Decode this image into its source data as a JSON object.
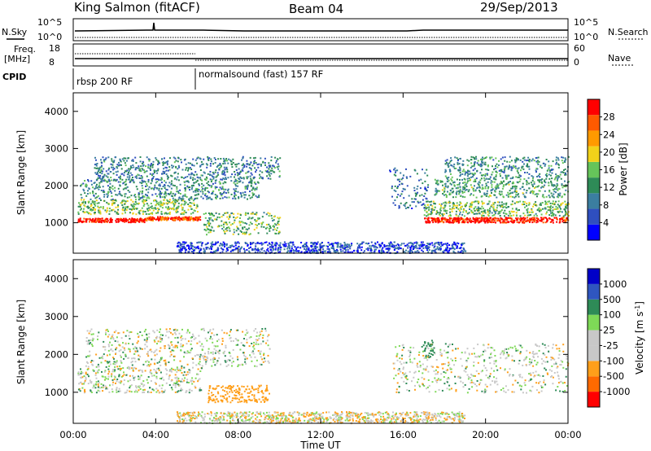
{
  "header": {
    "station": "King Salmon (fitACF)",
    "beam": "Beam 04",
    "date": "29/Sep/2013"
  },
  "strips": {
    "nsky_label": "N.Sky",
    "nsearch_label": "N.Search",
    "freq_label_1": "Freq.",
    "freq_label_2": "[MHz]",
    "nave_label": "Nave",
    "cpid_label": "CPID",
    "noise_ticks": [
      "10^5",
      "10^0"
    ],
    "freq_ticks": [
      "18",
      "8"
    ],
    "nave_ticks": [
      "60",
      "0"
    ],
    "cpid_segments": [
      {
        "label": "rbsp 200 RF",
        "start_hour": 0
      },
      {
        "label": "normalsound (fast) 157 RF",
        "start_hour": 6
      }
    ]
  },
  "colors": {
    "power_scale": [
      "#0000ff",
      "#2f4fbf",
      "#3b7ea0",
      "#2e8b57",
      "#66c45a",
      "#f2d21a",
      "#ff9a00",
      "#ff5a00",
      "#ff0000"
    ],
    "velocity_scale": [
      "#ff0000",
      "#ff6a00",
      "#ff9f1a",
      "#c8c8c8",
      "#c8c8c8",
      "#7ed957",
      "#2e8b57",
      "#2f56bf",
      "#0000c8"
    ],
    "ground_scatter": "#c8c8c8"
  },
  "chart_data": [
    {
      "type": "heatmap",
      "name": "power",
      "ylabel": "Slant Range [km]",
      "ylim": [
        180,
        4500
      ],
      "y_ticks": [
        1000,
        2000,
        3000,
        4000
      ],
      "x_ticks": [
        "00:00",
        "04:00",
        "08:00",
        "12:00",
        "16:00",
        "20:00",
        "00:00"
      ],
      "xlim_hours": [
        0,
        24
      ],
      "colorbar_label": "Power [dB]",
      "colorbar_ticks": [
        "4",
        "8",
        "12",
        "16",
        "20",
        "24",
        "28"
      ],
      "colorbar_range": [
        0,
        30
      ],
      "features": [
        {
          "t": [
            0.2,
            3.5
          ],
          "r0": 1030,
          "r1": 1140,
          "level": 29
        },
        {
          "t": [
            3.5,
            6.2
          ],
          "r0": 1080,
          "r1": 1180,
          "level": 26
        },
        {
          "t": [
            0.2,
            6.0
          ],
          "r0": 1250,
          "r1": 1650,
          "level": 15
        },
        {
          "t": [
            0.3,
            9.0
          ],
          "r0": 1650,
          "r1": 2200,
          "level": 10
        },
        {
          "t": [
            1.0,
            10.0
          ],
          "r0": 2200,
          "r1": 2800,
          "level": 9
        },
        {
          "t": [
            6.3,
            10.0
          ],
          "r0": 700,
          "r1": 1300,
          "level": 14
        },
        {
          "t": [
            15.3,
            17.2
          ],
          "r0": 1400,
          "r1": 2500,
          "level": 8
        },
        {
          "t": [
            17.0,
            24.0
          ],
          "r0": 1020,
          "r1": 1160,
          "level": 28
        },
        {
          "t": [
            17.0,
            24.0
          ],
          "r0": 1200,
          "r1": 1600,
          "level": 14
        },
        {
          "t": [
            17.5,
            24.0
          ],
          "r0": 1700,
          "r1": 2200,
          "level": 12
        },
        {
          "t": [
            18.0,
            24.0
          ],
          "r0": 2200,
          "r1": 2800,
          "level": 10
        },
        {
          "t": [
            5.0,
            19.0
          ],
          "r0": 200,
          "r1": 500,
          "level": 5
        }
      ]
    },
    {
      "type": "heatmap",
      "name": "velocity",
      "ylabel": "Slant Range [km]",
      "ylim": [
        180,
        4500
      ],
      "y_ticks": [
        1000,
        2000,
        3000,
        4000
      ],
      "x_ticks": [
        "00:00",
        "04:00",
        "08:00",
        "12:00",
        "16:00",
        "20:00",
        "00:00"
      ],
      "xlim_hours": [
        0,
        24
      ],
      "xlabel": "Time UT",
      "colorbar_label": "Velocity [m s^-1]",
      "colorbar_ticks": [
        "-1000",
        "-500",
        "-100",
        "-25",
        "25",
        "100",
        "500",
        "1000"
      ],
      "features": [
        {
          "t": [
            0.2,
            6.2
          ],
          "r0": 1000,
          "r1": 1700,
          "velocity": 0
        },
        {
          "t": [
            0.5,
            9.5
          ],
          "r0": 1700,
          "r1": 2700,
          "velocity": 0
        },
        {
          "t": [
            6.5,
            9.5
          ],
          "r0": 750,
          "r1": 1200,
          "velocity": -300
        },
        {
          "t": [
            15.5,
            24.0
          ],
          "r0": 1000,
          "r1": 2300,
          "velocity": 0
        },
        {
          "t": [
            17.0,
            17.5
          ],
          "r0": 1900,
          "r1": 2400,
          "velocity": 200
        },
        {
          "t": [
            5.0,
            19.0
          ],
          "r0": 200,
          "r1": 500,
          "velocity": -50
        }
      ]
    }
  ],
  "axis": {
    "xlabel": "Time UT"
  }
}
